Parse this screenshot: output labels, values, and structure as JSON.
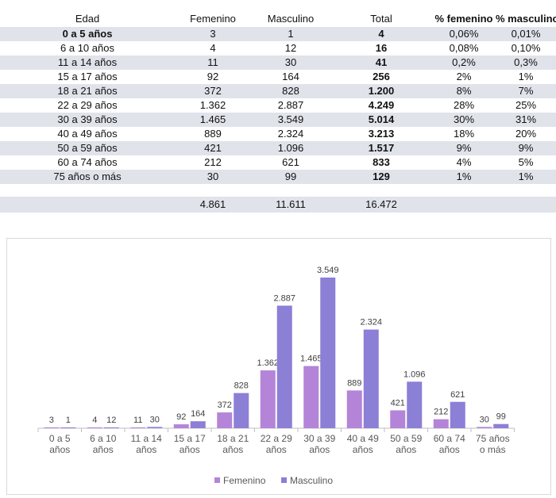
{
  "table": {
    "headers": [
      "Edad",
      "Femenino",
      "Masculino",
      "Total",
      "% femenino",
      "% masculino"
    ],
    "rows": [
      [
        "0 a 5 años",
        "3",
        "1",
        "4",
        "0,06%",
        "0,01%"
      ],
      [
        "6 a 10 años",
        "4",
        "12",
        "16",
        "0,08%",
        "0,10%"
      ],
      [
        "11 a 14 años",
        "11",
        "30",
        "41",
        "0,2%",
        "0,3%"
      ],
      [
        "15 a 17 años",
        "92",
        "164",
        "256",
        "2%",
        "1%"
      ],
      [
        "18 a 21 años",
        "372",
        "828",
        "1.200",
        "8%",
        "7%"
      ],
      [
        "22 a 29 años",
        "1.362",
        "2.887",
        "4.249",
        "28%",
        "25%"
      ],
      [
        "30 a 39 años",
        "1.465",
        "3.549",
        "5.014",
        "30%",
        "31%"
      ],
      [
        "40 a 49 años",
        "889",
        "2.324",
        "3.213",
        "18%",
        "20%"
      ],
      [
        "50 a 59 años",
        "421",
        "1.096",
        "1.517",
        "9%",
        "9%"
      ],
      [
        "60 a 74 años",
        "212",
        "621",
        "833",
        "4%",
        "5%"
      ],
      [
        "75 años o más",
        "30",
        "99",
        "129",
        "1%",
        "1%"
      ]
    ],
    "totals": [
      "",
      "4.861",
      "11.611",
      "16.472",
      "",
      ""
    ]
  },
  "chart_data": {
    "type": "bar",
    "categories": [
      "0 a 5 años",
      "6 a 10 años",
      "11 a 14 años",
      "15 a 17 años",
      "18 a 21 años",
      "22 a 29 años",
      "30 a 39 años",
      "40 a 49 años",
      "50 a 59 años",
      "60 a 74 años",
      "75 años o más"
    ],
    "category_lines": [
      [
        "0 a 5",
        "años"
      ],
      [
        "6 a 10",
        "años"
      ],
      [
        "11 a 14",
        "años"
      ],
      [
        "15 a 17",
        "años"
      ],
      [
        "18 a 21",
        "años"
      ],
      [
        "22 a 29",
        "años"
      ],
      [
        "30 a 39",
        "años"
      ],
      [
        "40 a 49",
        "años"
      ],
      [
        "50 a 59",
        "años"
      ],
      [
        "60 a 74",
        "años"
      ],
      [
        "75 años",
        "o más"
      ]
    ],
    "series": [
      {
        "name": "Femenino",
        "values": [
          3,
          4,
          11,
          92,
          372,
          1362,
          1465,
          889,
          421,
          212,
          30
        ],
        "labels": [
          "3",
          "4",
          "11",
          "92",
          "372",
          "1.362",
          "1.465",
          "889",
          "421",
          "212",
          "30"
        ],
        "color": "#b384d8"
      },
      {
        "name": "Masculino",
        "values": [
          1,
          12,
          30,
          164,
          828,
          2887,
          3549,
          2324,
          1096,
          621,
          99
        ],
        "labels": [
          "1",
          "12",
          "30",
          "164",
          "828",
          "2.887",
          "3.549",
          "2.324",
          "1.096",
          "621",
          "99"
        ],
        "color": "#8c7fd6"
      }
    ],
    "ylim": [
      0,
      3549
    ],
    "grid": false,
    "legend": "bottom"
  }
}
